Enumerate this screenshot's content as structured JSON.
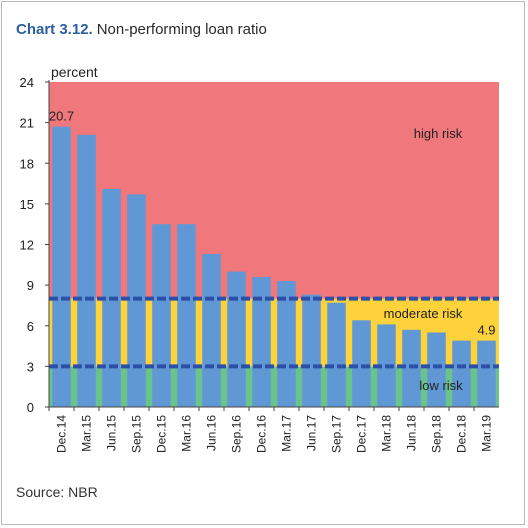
{
  "title": {
    "number": "Chart 3.12.",
    "text": "Non-performing loan ratio"
  },
  "source": "Source: NBR",
  "chart_data": {
    "type": "bar",
    "ylabel": "percent",
    "ylim": [
      0,
      24
    ],
    "yticks": [
      0,
      3,
      6,
      9,
      12,
      15,
      18,
      21,
      24
    ],
    "categories": [
      "Dec.14",
      "Mar.15",
      "Jun.15",
      "Sep.15",
      "Dec.15",
      "Mar.16",
      "Jun.16",
      "Sep.16",
      "Dec.16",
      "Mar.17",
      "Jun.17",
      "Sep.17",
      "Dec.17",
      "Mar.18",
      "Jun.18",
      "Sep.18",
      "Dec.18",
      "Mar.19"
    ],
    "values": [
      20.7,
      20.1,
      16.1,
      15.7,
      13.5,
      13.5,
      11.3,
      10.0,
      9.6,
      9.3,
      8.3,
      7.7,
      6.4,
      6.1,
      5.7,
      5.5,
      4.9,
      4.9
    ],
    "data_labels": [
      {
        "index": 0,
        "text": "20.7"
      },
      {
        "index": 17,
        "text": "4.9"
      }
    ],
    "zones": [
      {
        "label": "low risk",
        "from": 0,
        "to": 3,
        "color": "#6ac38b"
      },
      {
        "label": "moderate risk",
        "from": 3,
        "to": 8,
        "color": "#fdd23a"
      },
      {
        "label": "high risk",
        "from": 8,
        "to": 24,
        "color": "#f0777c"
      }
    ],
    "threshold_lines": [
      3,
      8
    ],
    "colors": {
      "bar": "#5f98d5",
      "threshold": "#2e4fa8"
    },
    "grid": false
  }
}
